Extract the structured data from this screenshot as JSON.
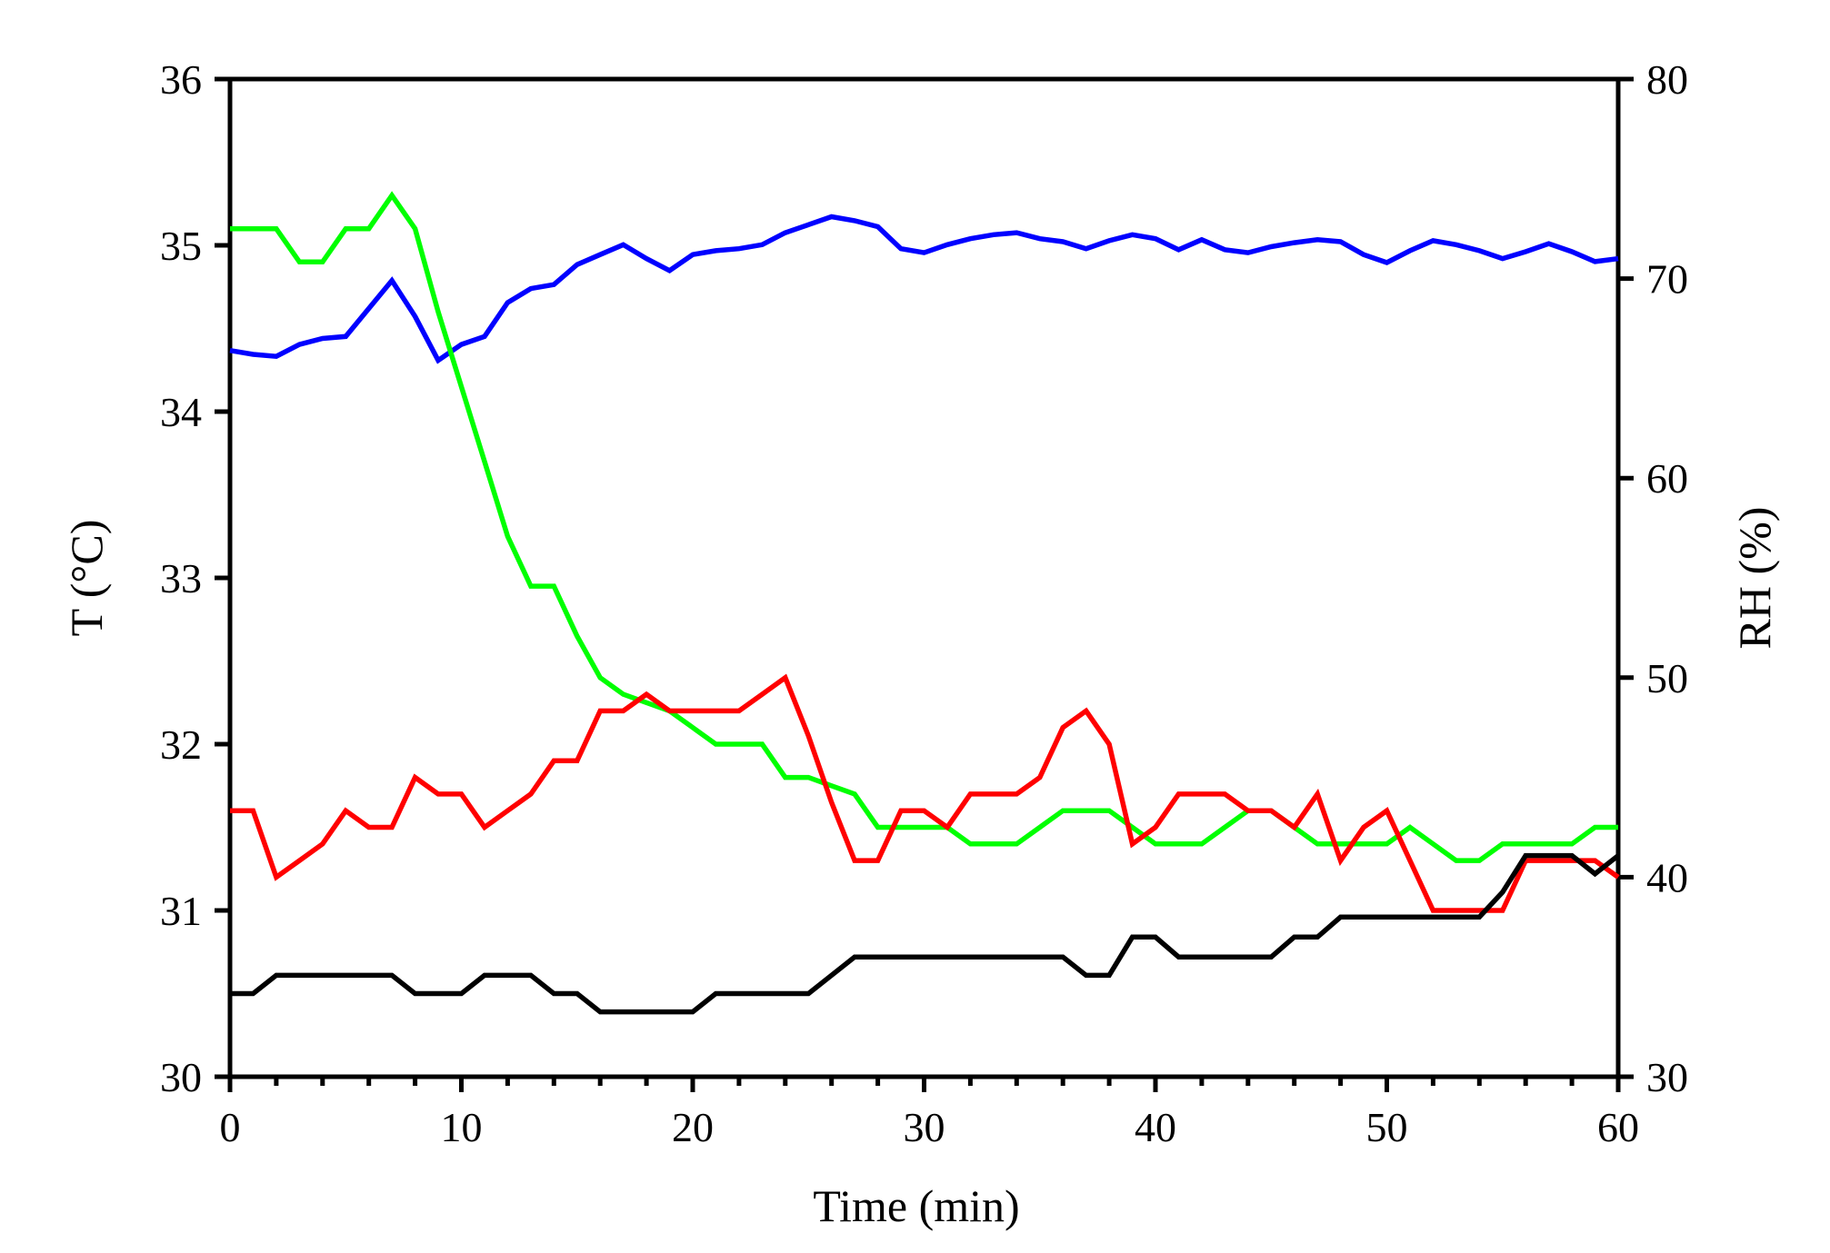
{
  "page": {
    "background": "#ffffff",
    "frame_color": "#000000"
  },
  "chart_data": {
    "type": "line",
    "title": "",
    "xlabel": "Time (min)",
    "ylabel_left": "T (°C)",
    "ylabel_right": "RH (%)",
    "x_range": [
      0,
      60
    ],
    "t_range": [
      30,
      36
    ],
    "rh_range": [
      30,
      80
    ],
    "x_major_ticks": [
      0,
      10,
      20,
      30,
      40,
      50,
      60
    ],
    "x_minor_step": 2,
    "t_major_ticks": [
      30,
      31,
      32,
      33,
      34,
      35,
      36
    ],
    "rh_major_ticks": [
      30,
      40,
      50,
      60,
      70,
      80
    ],
    "grid": false,
    "legend": "none",
    "x": [
      0,
      1,
      2,
      3,
      4,
      5,
      6,
      7,
      8,
      9,
      10,
      11,
      12,
      13,
      14,
      15,
      16,
      17,
      18,
      19,
      20,
      21,
      22,
      23,
      24,
      25,
      26,
      27,
      28,
      29,
      30,
      31,
      32,
      33,
      34,
      35,
      36,
      37,
      38,
      39,
      40,
      41,
      42,
      43,
      44,
      45,
      46,
      47,
      48,
      49,
      50,
      51,
      52,
      53,
      54,
      55,
      56,
      57,
      58,
      59,
      60
    ],
    "series": [
      {
        "name": "rh-blue",
        "axis": "right",
        "unit": "%",
        "color": "#0000ff",
        "values": [
          66.4,
          66.2,
          66.1,
          66.7,
          67.0,
          67.1,
          68.5,
          69.9,
          68.1,
          65.9,
          66.7,
          67.1,
          68.8,
          69.5,
          69.7,
          70.7,
          71.2,
          71.7,
          71.0,
          70.4,
          71.2,
          71.4,
          71.5,
          71.7,
          72.3,
          72.7,
          73.1,
          72.9,
          72.6,
          71.5,
          71.3,
          71.7,
          72.0,
          72.2,
          72.3,
          72.0,
          71.85,
          71.5,
          71.9,
          72.2,
          72.0,
          71.45,
          71.95,
          71.45,
          71.3,
          71.6,
          71.8,
          71.95,
          71.85,
          71.2,
          70.8,
          71.4,
          71.9,
          71.7,
          71.4,
          71.0,
          71.35,
          71.75,
          71.35,
          70.85,
          71.0
        ]
      },
      {
        "name": "t-green",
        "axis": "left",
        "unit": "°C",
        "color": "#00ff00",
        "values": [
          35.1,
          35.1,
          35.1,
          34.9,
          34.9,
          35.1,
          35.1,
          35.3,
          35.1,
          34.6,
          34.15,
          33.7,
          33.25,
          32.95,
          32.95,
          32.65,
          32.4,
          32.3,
          32.25,
          32.2,
          32.1,
          32.0,
          32.0,
          32.0,
          31.8,
          31.8,
          31.75,
          31.7,
          31.5,
          31.5,
          31.5,
          31.5,
          31.4,
          31.4,
          31.4,
          31.5,
          31.6,
          31.6,
          31.6,
          31.5,
          31.4,
          31.4,
          31.4,
          31.5,
          31.6,
          31.6,
          31.5,
          31.4,
          31.4,
          31.4,
          31.4,
          31.5,
          31.4,
          31.3,
          31.3,
          31.4,
          31.4,
          31.4,
          31.4,
          31.5,
          31.5
        ]
      },
      {
        "name": "t-red",
        "axis": "left",
        "unit": "°C",
        "color": "#ff0000",
        "values": [
          31.6,
          31.6,
          31.2,
          31.3,
          31.4,
          31.6,
          31.5,
          31.5,
          31.8,
          31.7,
          31.7,
          31.5,
          31.6,
          31.7,
          31.9,
          31.9,
          32.2,
          32.2,
          32.3,
          32.2,
          32.2,
          32.2,
          32.2,
          32.3,
          32.4,
          32.05,
          31.65,
          31.3,
          31.3,
          31.6,
          31.6,
          31.5,
          31.7,
          31.7,
          31.7,
          31.8,
          32.1,
          32.2,
          32.0,
          31.4,
          31.5,
          31.7,
          31.7,
          31.7,
          31.6,
          31.6,
          31.5,
          31.7,
          31.3,
          31.5,
          31.6,
          31.3,
          31.0,
          31.0,
          31.0,
          31.0,
          31.3,
          31.3,
          31.3,
          31.3,
          31.2
        ]
      },
      {
        "name": "t-black",
        "axis": "left",
        "unit": "°C",
        "color": "#000000",
        "values": [
          30.5,
          30.5,
          30.61,
          30.61,
          30.61,
          30.61,
          30.61,
          30.61,
          30.5,
          30.5,
          30.5,
          30.61,
          30.61,
          30.61,
          30.5,
          30.5,
          30.39,
          30.39,
          30.39,
          30.39,
          30.39,
          30.5,
          30.5,
          30.5,
          30.5,
          30.5,
          30.61,
          30.72,
          30.72,
          30.72,
          30.72,
          30.72,
          30.72,
          30.72,
          30.72,
          30.72,
          30.72,
          30.61,
          30.61,
          30.84,
          30.84,
          30.72,
          30.72,
          30.72,
          30.72,
          30.72,
          30.84,
          30.84,
          30.96,
          30.96,
          30.96,
          30.96,
          30.96,
          30.96,
          30.96,
          31.11,
          31.33,
          31.33,
          31.33,
          31.22,
          31.33
        ]
      }
    ]
  }
}
